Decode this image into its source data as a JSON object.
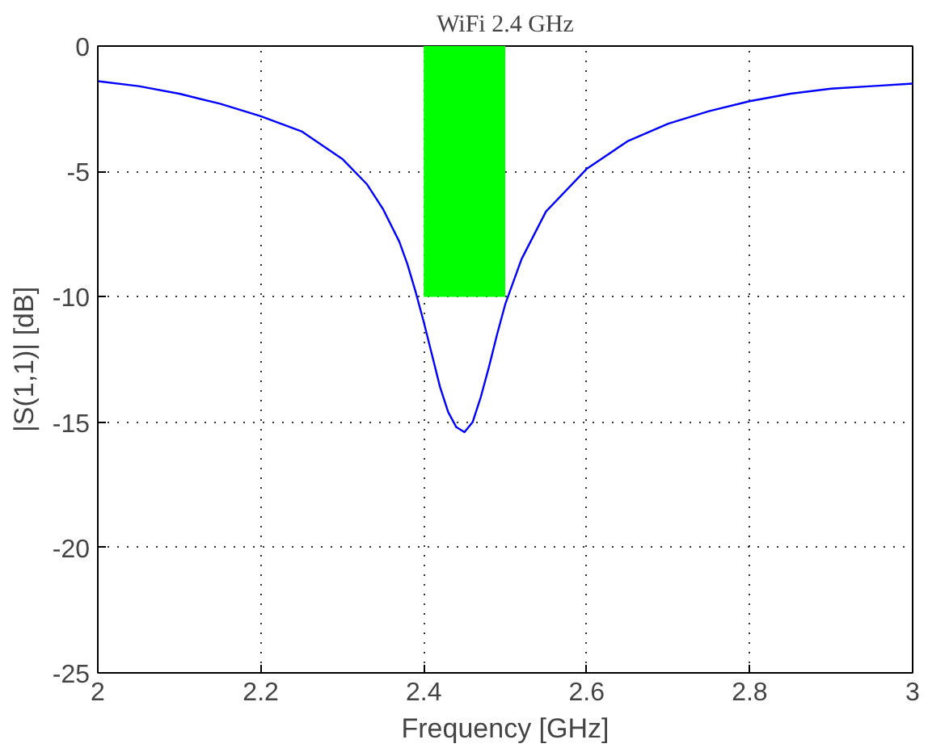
{
  "chart_data": {
    "type": "line",
    "title": "WiFi 2.4 GHz",
    "xlabel": "Frequency [GHz]",
    "ylabel": "|S(1,1)| [dB]",
    "xlim": [
      2,
      3
    ],
    "ylim": [
      -25,
      0
    ],
    "xticks": [
      2,
      2.2,
      2.4,
      2.6,
      2.8,
      3
    ],
    "yticks": [
      -25,
      -20,
      -15,
      -10,
      -5,
      0
    ],
    "grid": true,
    "line_style": "solid",
    "marker": "none",
    "series": [
      {
        "type": "area",
        "color": "#00ff00",
        "x": [
          2.4,
          2.5
        ],
        "values": [
          -10,
          -10
        ]
      },
      {
        "color": "#0000ff",
        "x": [
          2.0,
          2.05,
          2.1,
          2.15,
          2.2,
          2.25,
          2.3,
          2.33,
          2.35,
          2.37,
          2.38,
          2.39,
          2.4,
          2.41,
          2.42,
          2.43,
          2.44,
          2.45,
          2.46,
          2.47,
          2.48,
          2.49,
          2.5,
          2.52,
          2.55,
          2.6,
          2.65,
          2.7,
          2.75,
          2.8,
          2.85,
          2.9,
          2.95,
          3.0
        ],
        "values": [
          -1.4,
          -1.6,
          -1.9,
          -2.3,
          -2.8,
          -3.4,
          -4.5,
          -5.5,
          -6.5,
          -7.8,
          -8.7,
          -9.8,
          -11.0,
          -12.3,
          -13.6,
          -14.6,
          -15.2,
          -15.4,
          -15.0,
          -14.0,
          -12.8,
          -11.5,
          -10.3,
          -8.5,
          -6.6,
          -4.9,
          -3.8,
          -3.1,
          -2.6,
          -2.2,
          -1.9,
          -1.7,
          -1.6,
          -1.5
        ]
      }
    ]
  }
}
